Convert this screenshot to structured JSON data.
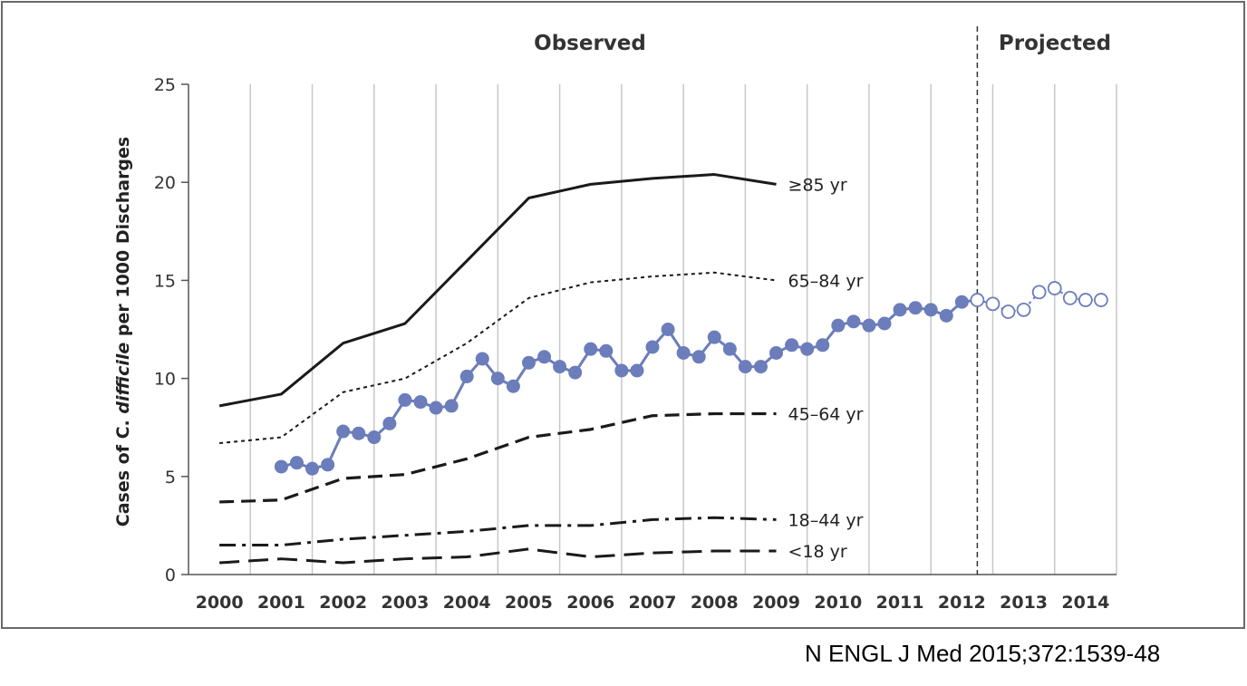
{
  "chart_data": {
    "type": "line",
    "ylabel": {
      "prefix": "Cases of C. ",
      "italic": "difficile",
      "suffix": " per 1000 Discharges"
    },
    "ylim": [
      0,
      25
    ],
    "yticks": [
      "0",
      "5",
      "10",
      "15",
      "20",
      "25"
    ],
    "xlim": [
      2000,
      2015
    ],
    "xticks": [
      "2000",
      "2001",
      "2002",
      "2003",
      "2004",
      "2005",
      "2006",
      "2007",
      "2008",
      "2009",
      "2010",
      "2011",
      "2012",
      "2013",
      "2014"
    ],
    "section_labels": {
      "observed": "Observed",
      "projected": "Projected"
    },
    "projection_start": 12.75,
    "grid": "vertical",
    "series": [
      {
        "name": "≥85 yr",
        "style": "solid",
        "x": [
          0,
          1,
          2,
          3,
          4,
          5,
          6,
          7,
          8,
          9
        ],
        "y": [
          8.6,
          9.2,
          11.8,
          12.8,
          16.0,
          19.2,
          19.9,
          20.2,
          20.4,
          19.9
        ]
      },
      {
        "name": "65–84 yr",
        "style": "dotted",
        "x": [
          0,
          1,
          2,
          3,
          4,
          5,
          6,
          7,
          8,
          9
        ],
        "y": [
          6.7,
          7.0,
          9.3,
          10.0,
          11.8,
          14.1,
          14.9,
          15.2,
          15.4,
          15.0
        ]
      },
      {
        "name": "45–64 yr",
        "style": "dashed",
        "x": [
          0,
          1,
          2,
          3,
          4,
          5,
          6,
          7,
          8,
          9
        ],
        "y": [
          3.7,
          3.8,
          4.9,
          5.1,
          5.9,
          7.0,
          7.4,
          8.1,
          8.2,
          8.2
        ]
      },
      {
        "name": "18–44 yr",
        "style": "dashdot",
        "x": [
          0,
          1,
          2,
          3,
          4,
          5,
          6,
          7,
          8,
          9
        ],
        "y": [
          1.5,
          1.5,
          1.8,
          2.0,
          2.2,
          2.5,
          2.5,
          2.8,
          2.9,
          2.8
        ]
      },
      {
        "name": "<18 yr",
        "style": "longdash",
        "x": [
          0,
          1,
          2,
          3,
          4,
          5,
          6,
          7,
          8,
          9
        ],
        "y": [
          0.6,
          0.8,
          0.6,
          0.8,
          0.9,
          1.3,
          0.9,
          1.1,
          1.2,
          1.2
        ]
      }
    ],
    "observed_overall": {
      "x": [
        1.5,
        1.75,
        2.0,
        2.25,
        2.5,
        2.75,
        3.0,
        3.25,
        3.5,
        3.75,
        4.0,
        4.25,
        4.5,
        4.75,
        5.0,
        5.25,
        5.5,
        5.75,
        6.0,
        6.25,
        6.5,
        6.75,
        7.0,
        7.25,
        7.5,
        7.75,
        8.0,
        8.25,
        8.5,
        8.75,
        9.0,
        9.25,
        9.5,
        9.75,
        10.0,
        10.25,
        10.5,
        10.75,
        11.0,
        11.25,
        11.5,
        11.75,
        12.0,
        12.25,
        12.5
      ],
      "y": [
        5.5,
        5.7,
        5.4,
        5.6,
        7.3,
        7.2,
        7.0,
        7.7,
        8.9,
        8.8,
        8.5,
        8.6,
        10.1,
        11.0,
        10.0,
        9.6,
        10.8,
        11.1,
        10.6,
        10.3,
        11.5,
        11.4,
        10.4,
        10.4,
        11.6,
        12.5,
        11.3,
        11.1,
        12.1,
        11.5,
        10.6,
        10.6,
        11.3,
        11.7,
        11.5,
        11.7,
        12.7,
        12.9,
        12.7,
        12.8,
        13.5,
        13.6,
        13.5,
        13.2,
        13.9
      ]
    },
    "projected_overall": {
      "x": [
        12.75,
        13.0,
        13.25,
        13.5,
        13.75,
        14.0,
        14.25,
        14.5,
        14.75
      ],
      "y": [
        14.0,
        13.8,
        13.4,
        13.5,
        14.4,
        14.6,
        14.1,
        14.0,
        14.0
      ]
    },
    "colors": {
      "overall": "#6b7dbb",
      "age_lines": "#1a1a1a",
      "grid": "#c8c8c8",
      "projection_line": "#333333"
    }
  },
  "citation": "N ENGL J Med 2015;372:1539-48"
}
